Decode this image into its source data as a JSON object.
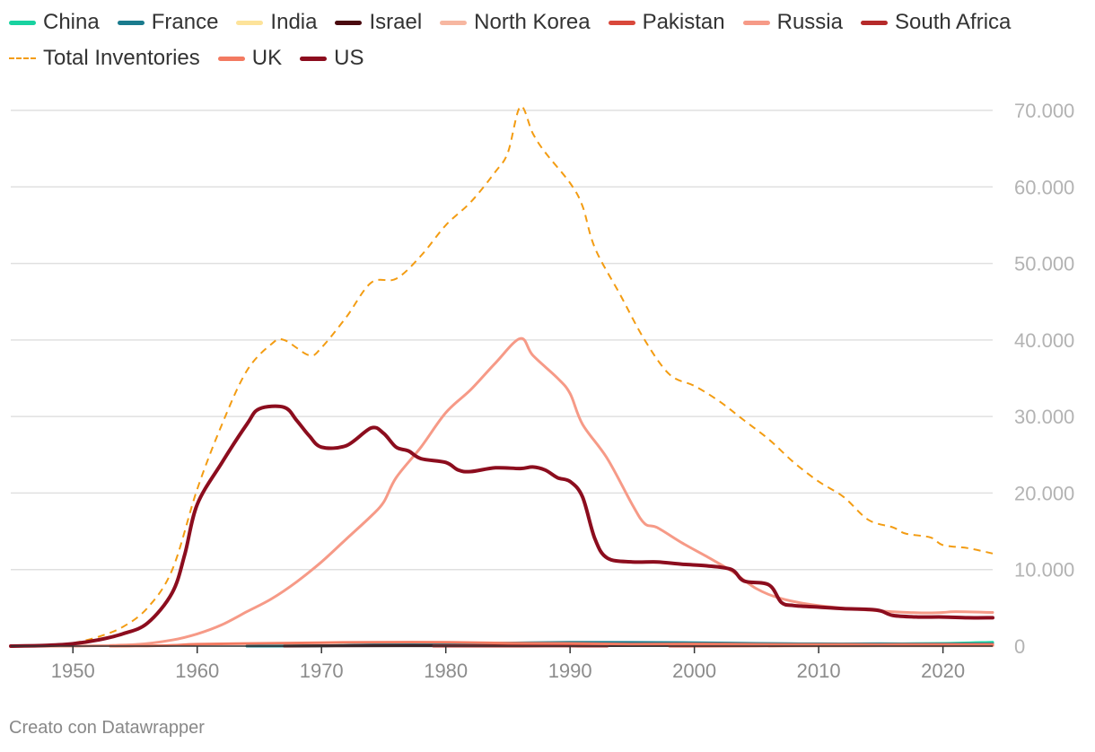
{
  "chart_data": {
    "type": "line",
    "title": "",
    "xlabel": "",
    "ylabel": "",
    "xlim": [
      1945,
      2024
    ],
    "ylim": [
      0,
      70000
    ],
    "grid": true,
    "legend_position": "top-left",
    "x_ticks": [
      1950,
      1960,
      1970,
      1980,
      1990,
      2000,
      2010,
      2020
    ],
    "y_ticks": [
      0,
      10000,
      20000,
      30000,
      40000,
      50000,
      60000,
      70000
    ],
    "y_tick_labels": [
      "0",
      "10.000",
      "20.000",
      "30.000",
      "40.000",
      "50.000",
      "60.000",
      "70.000"
    ],
    "x_tick_labels": [
      "1950",
      "1960",
      "1970",
      "1980",
      "1990",
      "2000",
      "2010",
      "2020"
    ],
    "series": [
      {
        "name": "China",
        "color": "#18d2a0",
        "dashed": false,
        "width": 3,
        "points": [
          [
            1964,
            0
          ],
          [
            1970,
            50
          ],
          [
            1975,
            150
          ],
          [
            1980,
            250
          ],
          [
            1985,
            300
          ],
          [
            1990,
            400
          ],
          [
            1995,
            400
          ],
          [
            2000,
            350
          ],
          [
            2005,
            300
          ],
          [
            2010,
            260
          ],
          [
            2015,
            300
          ],
          [
            2020,
            350
          ],
          [
            2024,
            500
          ]
        ]
      },
      {
        "name": "France",
        "color": "#1a7b8d",
        "dashed": false,
        "width": 3,
        "points": [
          [
            1964,
            0
          ],
          [
            1970,
            30
          ],
          [
            1975,
            200
          ],
          [
            1980,
            300
          ],
          [
            1985,
            400
          ],
          [
            1990,
            505
          ],
          [
            1995,
            480
          ],
          [
            2000,
            450
          ],
          [
            2005,
            350
          ],
          [
            2010,
            300
          ],
          [
            2015,
            300
          ],
          [
            2020,
            290
          ],
          [
            2024,
            290
          ]
        ]
      },
      {
        "name": "India",
        "color": "#fde39a",
        "dashed": false,
        "width": 3,
        "points": [
          [
            1998,
            0
          ],
          [
            2005,
            50
          ],
          [
            2010,
            80
          ],
          [
            2015,
            100
          ],
          [
            2020,
            150
          ],
          [
            2024,
            172
          ]
        ]
      },
      {
        "name": "Israel",
        "color": "#4a0a0f",
        "dashed": false,
        "width": 3,
        "points": [
          [
            1967,
            0
          ],
          [
            1970,
            20
          ],
          [
            1980,
            50
          ],
          [
            1990,
            60
          ],
          [
            2000,
            80
          ],
          [
            2010,
            80
          ],
          [
            2020,
            90
          ],
          [
            2024,
            90
          ]
        ]
      },
      {
        "name": "North Korea",
        "color": "#f7b7a1",
        "dashed": false,
        "width": 3,
        "points": [
          [
            2006,
            0
          ],
          [
            2010,
            10
          ],
          [
            2015,
            20
          ],
          [
            2020,
            40
          ],
          [
            2024,
            50
          ]
        ]
      },
      {
        "name": "Pakistan",
        "color": "#d9483b",
        "dashed": false,
        "width": 3,
        "points": [
          [
            1998,
            0
          ],
          [
            2005,
            40
          ],
          [
            2010,
            90
          ],
          [
            2015,
            120
          ],
          [
            2020,
            160
          ],
          [
            2024,
            170
          ]
        ]
      },
      {
        "name": "Russia",
        "color": "#f69a87",
        "dashed": false,
        "width": 3,
        "points": [
          [
            1945,
            0
          ],
          [
            1950,
            5
          ],
          [
            1955,
            200
          ],
          [
            1958,
            800
          ],
          [
            1960,
            1600
          ],
          [
            1962,
            2800
          ],
          [
            1964,
            4500
          ],
          [
            1966,
            6200
          ],
          [
            1968,
            8400
          ],
          [
            1970,
            11000
          ],
          [
            1972,
            14000
          ],
          [
            1974,
            17000
          ],
          [
            1975,
            18800
          ],
          [
            1976,
            22000
          ],
          [
            1978,
            26000
          ],
          [
            1980,
            30500
          ],
          [
            1982,
            33500
          ],
          [
            1984,
            37000
          ],
          [
            1986,
            40200
          ],
          [
            1987,
            38000
          ],
          [
            1989,
            35000
          ],
          [
            1990,
            33000
          ],
          [
            1991,
            29000
          ],
          [
            1993,
            24500
          ],
          [
            1995,
            18500
          ],
          [
            1996,
            16000
          ],
          [
            1997,
            15500
          ],
          [
            1999,
            13500
          ],
          [
            2001,
            11700
          ],
          [
            2003,
            9800
          ],
          [
            2005,
            7500
          ],
          [
            2007,
            6200
          ],
          [
            2010,
            5300
          ],
          [
            2014,
            4700
          ],
          [
            2018,
            4350
          ],
          [
            2020,
            4400
          ],
          [
            2021,
            4500
          ],
          [
            2024,
            4400
          ]
        ]
      },
      {
        "name": "South Africa",
        "color": "#b52a2a",
        "dashed": false,
        "width": 3,
        "points": [
          [
            1979,
            0
          ],
          [
            1982,
            1
          ],
          [
            1985,
            3
          ],
          [
            1988,
            6
          ],
          [
            1990,
            6
          ],
          [
            1992,
            3
          ],
          [
            1993,
            0
          ]
        ]
      },
      {
        "name": "Total Inventories",
        "color": "#f39c12",
        "dashed": true,
        "width": 2,
        "points": [
          [
            1945,
            0
          ],
          [
            1948,
            100
          ],
          [
            1950,
            400
          ],
          [
            1952,
            1200
          ],
          [
            1954,
            2500
          ],
          [
            1956,
            5000
          ],
          [
            1958,
            10000
          ],
          [
            1960,
            20500
          ],
          [
            1962,
            29000
          ],
          [
            1964,
            36000
          ],
          [
            1966,
            39500
          ],
          [
            1967,
            40000
          ],
          [
            1969,
            38000
          ],
          [
            1970,
            39000
          ],
          [
            1972,
            43000
          ],
          [
            1974,
            47500
          ],
          [
            1976,
            48000
          ],
          [
            1978,
            51000
          ],
          [
            1980,
            55000
          ],
          [
            1982,
            58000
          ],
          [
            1984,
            62000
          ],
          [
            1985,
            64500
          ],
          [
            1986,
            70500
          ],
          [
            1987,
            67000
          ],
          [
            1988,
            64500
          ],
          [
            1990,
            60500
          ],
          [
            1991,
            57500
          ],
          [
            1992,
            52000
          ],
          [
            1994,
            46000
          ],
          [
            1996,
            40000
          ],
          [
            1998,
            35500
          ],
          [
            2000,
            34000
          ],
          [
            2002,
            32000
          ],
          [
            2004,
            29500
          ],
          [
            2006,
            27000
          ],
          [
            2008,
            24000
          ],
          [
            2010,
            21500
          ],
          [
            2012,
            19500
          ],
          [
            2014,
            16500
          ],
          [
            2016,
            15500
          ],
          [
            2017,
            14700
          ],
          [
            2019,
            14200
          ],
          [
            2020,
            13200
          ],
          [
            2022,
            12800
          ],
          [
            2024,
            12100
          ]
        ]
      },
      {
        "name": "UK",
        "color": "#f37a61",
        "dashed": false,
        "width": 3,
        "points": [
          [
            1953,
            0
          ],
          [
            1955,
            20
          ],
          [
            1958,
            100
          ],
          [
            1960,
            250
          ],
          [
            1965,
            350
          ],
          [
            1970,
            450
          ],
          [
            1974,
            500
          ],
          [
            1980,
            500
          ],
          [
            1985,
            380
          ],
          [
            1990,
            350
          ],
          [
            1995,
            250
          ],
          [
            2000,
            280
          ],
          [
            2005,
            230
          ],
          [
            2010,
            225
          ],
          [
            2015,
            215
          ],
          [
            2020,
            225
          ],
          [
            2024,
            225
          ]
        ]
      },
      {
        "name": "US",
        "color": "#8c0d1e",
        "dashed": false,
        "width": 4,
        "points": [
          [
            1945,
            0
          ],
          [
            1948,
            100
          ],
          [
            1950,
            300
          ],
          [
            1952,
            800
          ],
          [
            1954,
            1600
          ],
          [
            1956,
            3000
          ],
          [
            1958,
            7000
          ],
          [
            1959,
            12000
          ],
          [
            1960,
            18500
          ],
          [
            1962,
            24000
          ],
          [
            1964,
            29000
          ],
          [
            1965,
            31000
          ],
          [
            1967,
            31200
          ],
          [
            1968,
            29500
          ],
          [
            1969,
            27500
          ],
          [
            1970,
            26000
          ],
          [
            1972,
            26200
          ],
          [
            1974,
            28500
          ],
          [
            1975,
            27800
          ],
          [
            1976,
            26000
          ],
          [
            1977,
            25500
          ],
          [
            1978,
            24500
          ],
          [
            1980,
            24000
          ],
          [
            1981,
            23000
          ],
          [
            1982,
            22800
          ],
          [
            1984,
            23300
          ],
          [
            1986,
            23200
          ],
          [
            1987,
            23400
          ],
          [
            1988,
            23000
          ],
          [
            1989,
            22000
          ],
          [
            1990,
            21500
          ],
          [
            1991,
            19500
          ],
          [
            1992,
            14000
          ],
          [
            1993,
            11500
          ],
          [
            1995,
            11000
          ],
          [
            1997,
            11000
          ],
          [
            1999,
            10700
          ],
          [
            2001,
            10500
          ],
          [
            2003,
            10000
          ],
          [
            2004,
            8500
          ],
          [
            2006,
            8000
          ],
          [
            2007,
            5700
          ],
          [
            2008,
            5300
          ],
          [
            2010,
            5100
          ],
          [
            2012,
            4900
          ],
          [
            2014,
            4800
          ],
          [
            2015,
            4600
          ],
          [
            2016,
            4000
          ],
          [
            2018,
            3800
          ],
          [
            2020,
            3800
          ],
          [
            2022,
            3700
          ],
          [
            2024,
            3700
          ]
        ]
      }
    ]
  },
  "credit": "Creato con Datawrapper"
}
